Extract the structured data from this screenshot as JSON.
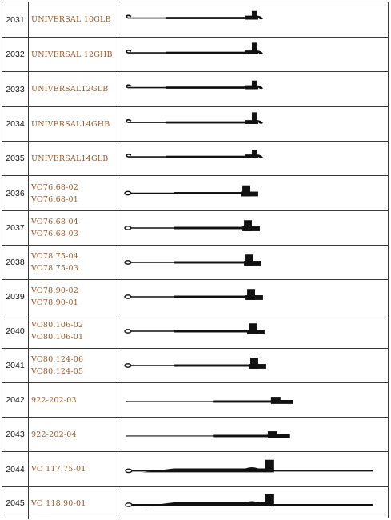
{
  "colors": {
    "border": "#3a3a3a",
    "code_text": "#9a5a2a",
    "number_text": "#111111",
    "needle": "#111111"
  },
  "rows": [
    {
      "number": "2031",
      "codes": [
        "UNIVERSAL 10GLB"
      ],
      "needle_icon": "latch-needle-small-hook-icon"
    },
    {
      "number": "2032",
      "codes": [
        "UNIVERSAL 12GHB"
      ],
      "needle_icon": "latch-needle-tall-hook-icon"
    },
    {
      "number": "2033",
      "codes": [
        "UNIVERSAL12GLB"
      ],
      "needle_icon": "latch-needle-small-hook-icon"
    },
    {
      "number": "2034",
      "codes": [
        "UNIVERSAL14GHB"
      ],
      "needle_icon": "latch-needle-tall-hook-icon"
    },
    {
      "number": "2035",
      "codes": [
        "UNIVERSAL14GLB"
      ],
      "needle_icon": "latch-needle-small-hook-icon"
    },
    {
      "number": "2036",
      "codes": [
        "VO76.68-02",
        "VO76.68-01"
      ],
      "needle_icon": "eye-needle-square-butt-icon"
    },
    {
      "number": "2037",
      "codes": [
        "VO76.68-04",
        "VO76.68-03"
      ],
      "needle_icon": "eye-needle-square-butt-icon"
    },
    {
      "number": "2038",
      "codes": [
        "VO78.75-04",
        "VO78.75-03"
      ],
      "needle_icon": "eye-needle-square-butt-icon"
    },
    {
      "number": "2039",
      "codes": [
        "VO78.90-02",
        "VO78.90-01"
      ],
      "needle_icon": "eye-needle-square-butt-icon"
    },
    {
      "number": "2040",
      "codes": [
        "VO80.106-02",
        "VO80.106-01"
      ],
      "needle_icon": "eye-needle-square-butt-icon"
    },
    {
      "number": "2041",
      "codes": [
        "VO80.124-06",
        "VO80.124-05"
      ],
      "needle_icon": "eye-needle-square-butt-icon"
    },
    {
      "number": "2042",
      "codes": [
        "922-202-03"
      ],
      "needle_icon": "thin-needle-step-butt-icon"
    },
    {
      "number": "2043",
      "codes": [
        "922-202-04"
      ],
      "needle_icon": "thin-needle-step-butt-icon"
    },
    {
      "number": "2044",
      "codes": [
        "VO 117.75-01"
      ],
      "needle_icon": "long-needle-with-notch-icon"
    },
    {
      "number": "2045",
      "codes": [
        "VO 118.90-01"
      ],
      "needle_icon": "long-needle-with-notch-icon"
    }
  ]
}
